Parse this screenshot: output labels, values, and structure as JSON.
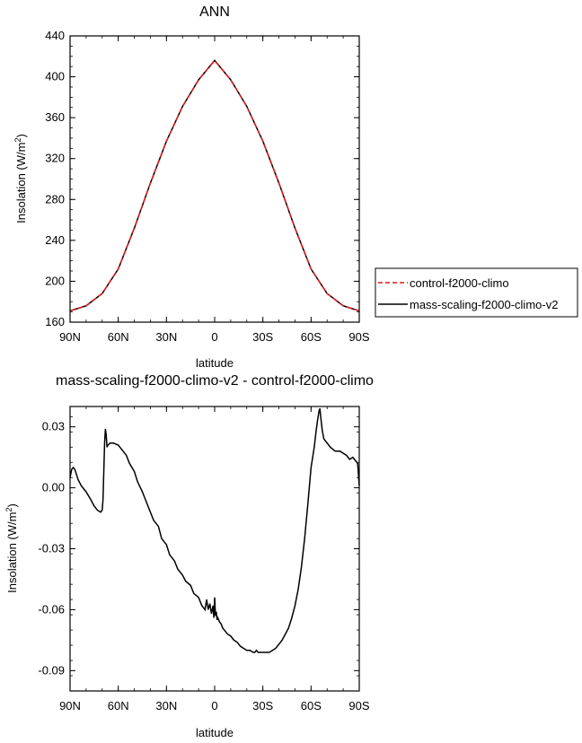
{
  "chart_data": [
    {
      "type": "line",
      "title": "ANN",
      "xlabel": "latitude",
      "ylabel": "Insolation (W/m",
      "ylabel_sup": "2",
      "ylabel_close": ")",
      "x_ticks": [
        {
          "value": 90,
          "label": "90N"
        },
        {
          "value": 60,
          "label": "60N"
        },
        {
          "value": 30,
          "label": "30N"
        },
        {
          "value": 0,
          "label": "0"
        },
        {
          "value": -30,
          "label": "30S"
        },
        {
          "value": -60,
          "label": "60S"
        },
        {
          "value": -90,
          "label": "90S"
        }
      ],
      "xlim": [
        90,
        -90
      ],
      "ylim": [
        160,
        440
      ],
      "y_ticks": [
        {
          "value": 160,
          "label": "160"
        },
        {
          "value": 200,
          "label": "200"
        },
        {
          "value": 240,
          "label": "240"
        },
        {
          "value": 280,
          "label": "280"
        },
        {
          "value": 320,
          "label": "320"
        },
        {
          "value": 360,
          "label": "360"
        },
        {
          "value": 400,
          "label": "400"
        },
        {
          "value": 440,
          "label": "440"
        }
      ],
      "series": [
        {
          "name": "control-f2000-climo",
          "color": "#e0191b",
          "dash": "dashed",
          "x": [
            90,
            80,
            70,
            60,
            50,
            40,
            30,
            20,
            10,
            0,
            -10,
            -20,
            -30,
            -40,
            -50,
            -60,
            -70,
            -80,
            -90
          ],
          "y": [
            171,
            176,
            188,
            212,
            252,
            296,
            337,
            371,
            397,
            416,
            397,
            371,
            337,
            296,
            252,
            212,
            188,
            176,
            171
          ]
        },
        {
          "name": "mass-scaling-f2000-climo-v2",
          "color": "#000000",
          "dash": "solid",
          "x": [
            90,
            80,
            70,
            60,
            50,
            40,
            30,
            20,
            10,
            0,
            -10,
            -20,
            -30,
            -40,
            -50,
            -60,
            -70,
            -80,
            -90
          ],
          "y": [
            171,
            176,
            188,
            212,
            252,
            296,
            337,
            371,
            397,
            416,
            397,
            371,
            337,
            296,
            252,
            212,
            188,
            176,
            171
          ]
        }
      ],
      "legend": "right"
    },
    {
      "type": "line",
      "title": "mass-scaling-f2000-climo-v2 - control-f2000-climo",
      "xlabel": "latitude",
      "ylabel": "Insolation (W/m",
      "ylabel_sup": "2",
      "ylabel_close": ")",
      "x_ticks": [
        {
          "value": 90,
          "label": "90N"
        },
        {
          "value": 60,
          "label": "60N"
        },
        {
          "value": 30,
          "label": "30N"
        },
        {
          "value": 0,
          "label": "0"
        },
        {
          "value": -30,
          "label": "30S"
        },
        {
          "value": -60,
          "label": "60S"
        },
        {
          "value": -90,
          "label": "90S"
        }
      ],
      "xlim": [
        90,
        -90
      ],
      "ylim": [
        -0.1,
        0.04
      ],
      "y_ticks": [
        {
          "value": 0.03,
          "label": "0.03"
        },
        {
          "value": 0.0,
          "label": "0.00"
        },
        {
          "value": -0.03,
          "label": "-0.03"
        },
        {
          "value": -0.06,
          "label": "-0.06"
        },
        {
          "value": -0.09,
          "label": "-0.09"
        }
      ],
      "series": [
        {
          "color": "#000000",
          "dash": "solid",
          "x": [
            90,
            89,
            88,
            87,
            85,
            83,
            80,
            77,
            75,
            73,
            71,
            70,
            69.5,
            69,
            68.5,
            68,
            67.5,
            67,
            66.5,
            65,
            63,
            60,
            58,
            55,
            53,
            50,
            48,
            45,
            43,
            40,
            38,
            35,
            33,
            30,
            28,
            25,
            23,
            20,
            18,
            15,
            13,
            10,
            8,
            6,
            5,
            4,
            3,
            2,
            1,
            0.5,
            0,
            -0.5,
            -1,
            -1.5,
            -2,
            -3,
            -4,
            -5,
            -6,
            -8,
            -10,
            -12,
            -14,
            -16,
            -18,
            -20,
            -22,
            -24,
            -25,
            -26,
            -27,
            -28,
            -30,
            -32,
            -34,
            -36,
            -38,
            -40,
            -42,
            -44,
            -46,
            -48,
            -50,
            -52,
            -54,
            -56,
            -58,
            -60,
            -62,
            -63,
            -64,
            -65,
            -65.5,
            -66,
            -67,
            -68,
            -70,
            -72,
            -75,
            -78,
            -80,
            -82,
            -84,
            -86,
            -87,
            -88,
            -89,
            -90
          ],
          "y": [
            0.005,
            0.009,
            0.01,
            0.009,
            0.004,
            0.001,
            -0.002,
            -0.006,
            -0.009,
            -0.011,
            -0.012,
            -0.011,
            -0.006,
            0.008,
            0.022,
            0.029,
            0.026,
            0.02,
            0.021,
            0.022,
            0.022,
            0.021,
            0.019,
            0.016,
            0.012,
            0.008,
            0.003,
            -0.002,
            -0.006,
            -0.012,
            -0.016,
            -0.019,
            -0.025,
            -0.028,
            -0.033,
            -0.036,
            -0.04,
            -0.043,
            -0.046,
            -0.048,
            -0.052,
            -0.054,
            -0.058,
            -0.06,
            -0.055,
            -0.06,
            -0.057,
            -0.062,
            -0.058,
            -0.064,
            -0.054,
            -0.063,
            -0.061,
            -0.065,
            -0.064,
            -0.066,
            -0.067,
            -0.069,
            -0.07,
            -0.072,
            -0.073,
            -0.075,
            -0.076,
            -0.078,
            -0.079,
            -0.08,
            -0.08,
            -0.081,
            -0.081,
            -0.08,
            -0.081,
            -0.081,
            -0.081,
            -0.081,
            -0.081,
            -0.08,
            -0.079,
            -0.077,
            -0.075,
            -0.072,
            -0.069,
            -0.064,
            -0.058,
            -0.05,
            -0.039,
            -0.025,
            -0.008,
            0.01,
            0.02,
            0.027,
            0.033,
            0.038,
            0.039,
            0.035,
            0.028,
            0.024,
            0.022,
            0.02,
            0.018,
            0.018,
            0.017,
            0.016,
            0.014,
            0.015,
            0.014,
            0.013,
            0.012,
            0.001
          ]
        }
      ]
    }
  ]
}
